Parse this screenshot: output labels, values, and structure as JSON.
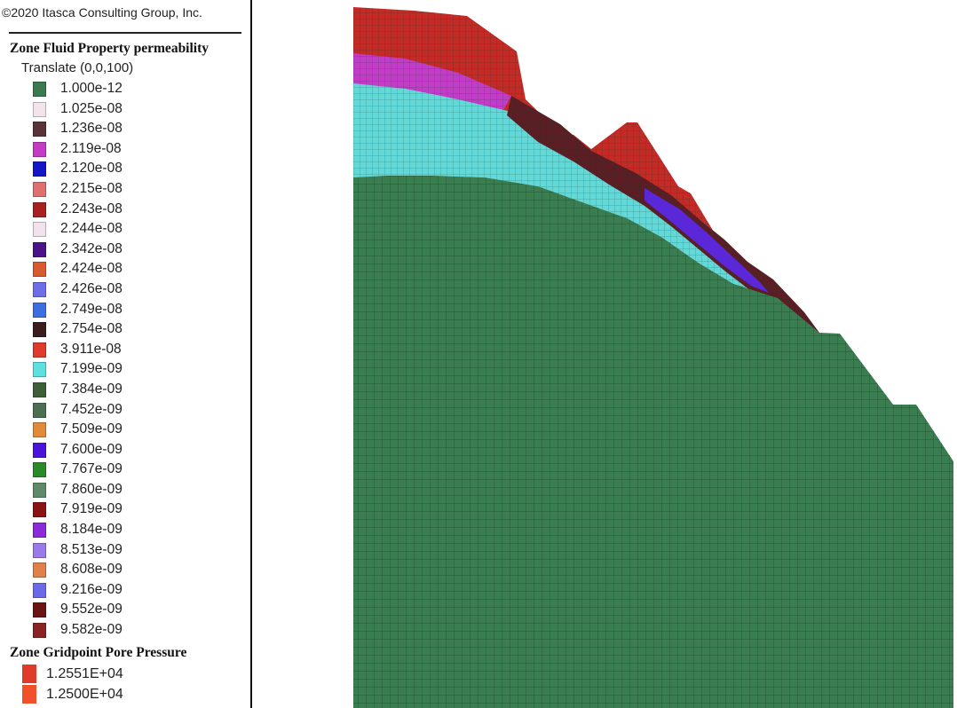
{
  "copyright": "©2020 Itasca Consulting Group, Inc.",
  "permeability": {
    "title": "Zone Fluid Property permeability",
    "translate": "Translate (0,0,100)",
    "items": [
      {
        "label": "1.000e-12",
        "color": "#3a7a4e"
      },
      {
        "label": "1.025e-08",
        "color": "#f3e4ec"
      },
      {
        "label": "1.236e-08",
        "color": "#5a3338"
      },
      {
        "label": "2.119e-08",
        "color": "#c43cc4"
      },
      {
        "label": "2.120e-08",
        "color": "#1414c8"
      },
      {
        "label": "2.215e-08",
        "color": "#e07070"
      },
      {
        "label": "2.243e-08",
        "color": "#a82020"
      },
      {
        "label": "2.244e-08",
        "color": "#f2e2ee"
      },
      {
        "label": "2.342e-08",
        "color": "#4a1488"
      },
      {
        "label": "2.424e-08",
        "color": "#d85a30"
      },
      {
        "label": "2.426e-08",
        "color": "#6e6ee8"
      },
      {
        "label": "2.749e-08",
        "color": "#3c6ee0"
      },
      {
        "label": "2.754e-08",
        "color": "#3a1e1e"
      },
      {
        "label": "3.911e-08",
        "color": "#e03a2a"
      },
      {
        "label": "7.199e-09",
        "color": "#5ce0e0"
      },
      {
        "label": "7.384e-09",
        "color": "#3e5e3a"
      },
      {
        "label": "7.452e-09",
        "color": "#4e6e54"
      },
      {
        "label": "7.509e-09",
        "color": "#e08a3a"
      },
      {
        "label": "7.600e-09",
        "color": "#4a14d8"
      },
      {
        "label": "7.767e-09",
        "color": "#2a8a2a"
      },
      {
        "label": "7.860e-09",
        "color": "#5e8a6a"
      },
      {
        "label": "7.919e-09",
        "color": "#8a1414"
      },
      {
        "label": "8.184e-09",
        "color": "#8a2ad8"
      },
      {
        "label": "8.513e-09",
        "color": "#9a7ae8"
      },
      {
        "label": "8.608e-09",
        "color": "#e0804a"
      },
      {
        "label": "9.216e-09",
        "color": "#6a6ae8"
      },
      {
        "label": "9.552e-09",
        "color": "#6a1414"
      },
      {
        "label": "9.582e-09",
        "color": "#8a2424"
      }
    ]
  },
  "pore_pressure": {
    "title": "Zone Gridpoint Pore Pressure",
    "items": [
      {
        "label": "1.2551E+04",
        "color": "#e03a2a"
      },
      {
        "label": "1.2500E+04",
        "color": "#f0502a"
      }
    ]
  },
  "model": {
    "colors": {
      "bedrock": "#3a7d50",
      "upper_cap": "#c42a26",
      "magenta_layer": "#c23cc8",
      "cyan_layer": "#62d8d8",
      "slope_strip": "#5a1e24",
      "blue_strip": "#5a28d8",
      "mesh": "#0f3a1e"
    }
  }
}
